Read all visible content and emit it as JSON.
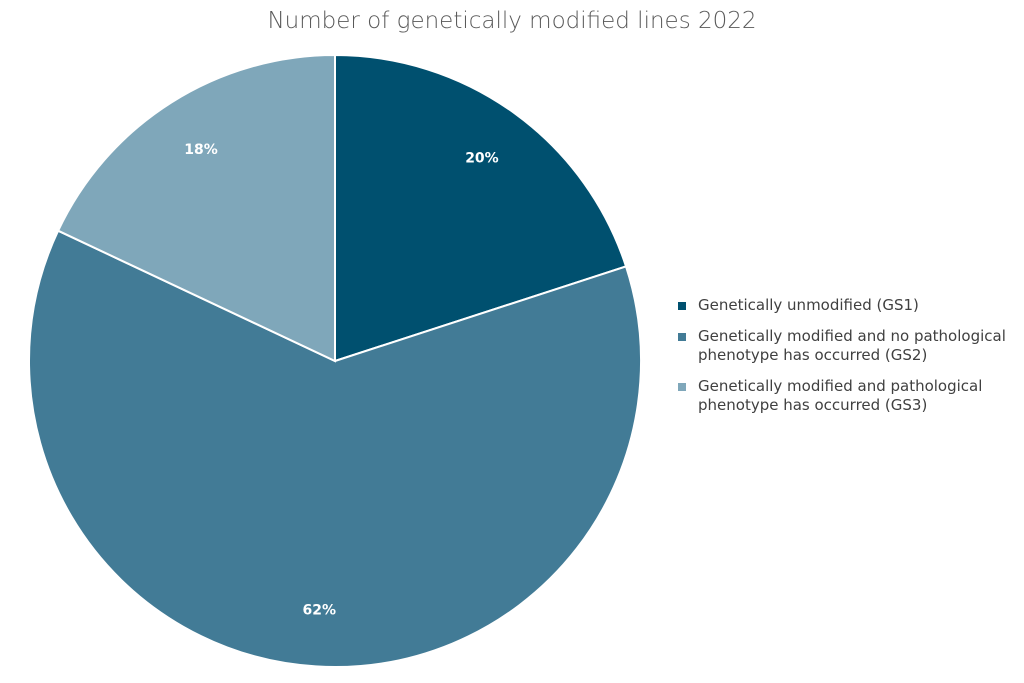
{
  "chart_data": {
    "type": "pie",
    "title": "Number of genetically modified lines 2022",
    "legend_position": "right",
    "slices": [
      {
        "label": "Genetically unmodified (GS1)",
        "value": 20,
        "display": "20%",
        "color": "#00506F"
      },
      {
        "label": "Genetically modified and no pathological phenotype has occurred (GS2)",
        "value": 62,
        "display": "62%",
        "color": "#427B96"
      },
      {
        "label": "Genetically modified and pathological phenotype has occurred (GS3)",
        "value": 18,
        "display": "18%",
        "color": "#7FA7BA"
      }
    ]
  }
}
